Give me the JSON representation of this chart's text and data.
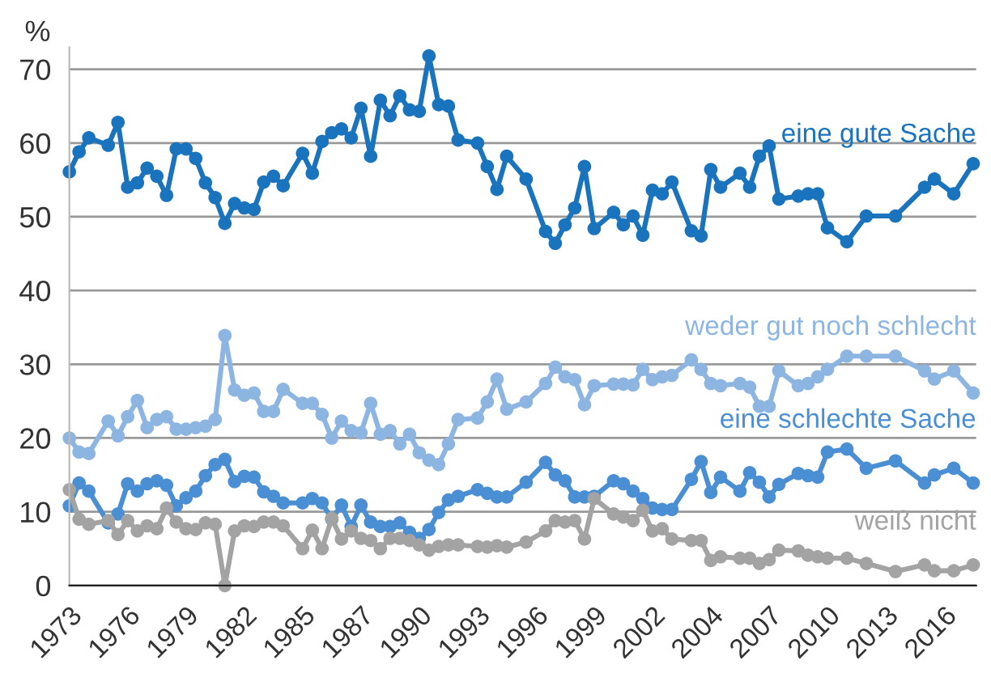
{
  "chart_data": {
    "type": "line",
    "ylabel": "%",
    "categories": [
      "1973",
      null,
      null,
      null,
      null,
      null,
      "1976",
      null,
      null,
      null,
      null,
      null,
      "1979",
      null,
      null,
      null,
      null,
      null,
      "1982",
      null,
      null,
      null,
      null,
      null,
      "1985",
      null,
      null,
      null,
      null,
      null,
      "1987",
      null,
      null,
      null,
      null,
      null,
      "1990",
      null,
      null,
      null,
      null,
      null,
      "1993",
      null,
      null,
      null,
      null,
      null,
      "1996",
      null,
      null,
      null,
      null,
      null,
      "1999",
      null,
      null,
      null,
      null,
      null,
      "2002",
      null,
      null,
      null,
      null,
      null,
      "2004",
      null,
      null,
      null,
      null,
      null,
      "2007",
      null,
      null,
      null,
      null,
      null,
      "2010",
      null,
      null,
      null,
      null,
      null,
      "2013",
      null,
      null,
      null,
      null,
      null,
      "2016",
      null,
      null,
      null
    ],
    "series": [
      {
        "name": "eine gute Sache",
        "color": "#1a74bd",
        "values": [
          56.1,
          58.8,
          60.7,
          null,
          59.7,
          62.8,
          54.0,
          54.6,
          56.6,
          55.5,
          52.9,
          59.2,
          59.2,
          57.9,
          54.6,
          52.6,
          49.1,
          51.8,
          51.2,
          51.0,
          54.7,
          55.5,
          54.2,
          null,
          58.6,
          55.9,
          60.2,
          61.4,
          61.9,
          60.7,
          64.7,
          58.2,
          65.8,
          63.7,
          66.4,
          64.5,
          64.3,
          71.8,
          65.2,
          65.0,
          60.4,
          null,
          60.0,
          56.8,
          53.7,
          58.2,
          null,
          55.1,
          null,
          48.0,
          46.4,
          48.9,
          51.2,
          56.8,
          48.4,
          null,
          50.6,
          48.9,
          50.1,
          47.5,
          53.6,
          53.1,
          54.7,
          null,
          48.1,
          47.4,
          56.4,
          54.0,
          null,
          55.9,
          54.0,
          58.2,
          59.6,
          52.4,
          null,
          52.8,
          53.1,
          53.1,
          48.5,
          null,
          46.6,
          null,
          50.1,
          null,
          null,
          50.1,
          null,
          null,
          54.0,
          55.1,
          null,
          53.1,
          null,
          57.2
        ]
      },
      {
        "name": "weder gut noch schlecht",
        "color": "#8db5e2",
        "values": [
          20.0,
          18.1,
          17.9,
          null,
          22.3,
          20.3,
          22.9,
          25.1,
          21.4,
          22.5,
          22.9,
          21.2,
          21.2,
          21.4,
          21.6,
          22.5,
          33.9,
          26.5,
          25.8,
          26.1,
          23.6,
          23.6,
          26.6,
          null,
          24.7,
          24.7,
          23.2,
          20.0,
          22.3,
          21.0,
          20.7,
          24.7,
          20.5,
          21.0,
          19.2,
          20.5,
          18.0,
          17.0,
          16.4,
          19.2,
          22.5,
          null,
          22.7,
          24.9,
          28.0,
          23.9,
          null,
          24.9,
          null,
          27.4,
          29.6,
          28.3,
          27.9,
          24.5,
          27.1,
          null,
          27.3,
          27.3,
          27.2,
          29.3,
          27.9,
          28.3,
          28.5,
          null,
          30.6,
          29.3,
          27.4,
          27.1,
          null,
          27.4,
          26.9,
          24.3,
          24.3,
          29.1,
          null,
          27.1,
          27.4,
          28.3,
          29.3,
          null,
          31.1,
          null,
          31.1,
          null,
          null,
          31.1,
          null,
          null,
          29.1,
          28.0,
          null,
          29.1,
          null,
          26.1
        ]
      },
      {
        "name": "eine schlechte Sache",
        "color": "#4a8ed4",
        "values": [
          10.8,
          13.9,
          12.8,
          null,
          8.5,
          9.7,
          13.8,
          12.8,
          13.8,
          14.2,
          13.6,
          10.8,
          11.9,
          12.8,
          14.9,
          16.4,
          17.1,
          14.1,
          14.8,
          14.7,
          12.7,
          12.1,
          11.2,
          null,
          11.2,
          11.8,
          11.2,
          9.0,
          10.9,
          8.0,
          10.9,
          8.6,
          8.0,
          8.0,
          8.5,
          7.2,
          6.4,
          7.6,
          9.9,
          11.6,
          12.1,
          null,
          13.0,
          12.5,
          12.0,
          12.0,
          null,
          14.0,
          null,
          16.7,
          15.0,
          14.2,
          12.0,
          12.0,
          12.1,
          null,
          14.2,
          13.8,
          12.8,
          11.8,
          10.5,
          10.3,
          10.3,
          null,
          14.4,
          16.8,
          12.6,
          14.7,
          null,
          12.8,
          15.3,
          14.0,
          12.0,
          13.7,
          null,
          15.2,
          14.9,
          14.7,
          18.1,
          null,
          18.5,
          null,
          15.9,
          null,
          null,
          16.9,
          null,
          null,
          13.9,
          15.0,
          null,
          15.9,
          null,
          13.9
        ]
      },
      {
        "name": "weiß nicht",
        "color": "#a3a3a3",
        "values": [
          13.0,
          9.0,
          8.3,
          null,
          8.8,
          6.9,
          8.8,
          7.4,
          8.1,
          7.7,
          10.5,
          8.6,
          7.7,
          7.6,
          8.5,
          8.3,
          0,
          7.4,
          8.1,
          8.0,
          8.6,
          8.6,
          8.1,
          null,
          5.0,
          7.5,
          5.0,
          9.1,
          6.3,
          7.4,
          6.4,
          6.1,
          5.0,
          6.4,
          6.4,
          6.1,
          5.5,
          4.8,
          5.3,
          5.5,
          5.5,
          null,
          5.3,
          5.2,
          5.4,
          5.2,
          null,
          5.9,
          null,
          7.4,
          8.8,
          8.6,
          8.8,
          6.3,
          11.8,
          null,
          9.7,
          9.3,
          8.8,
          10.2,
          7.4,
          7.7,
          6.3,
          null,
          6.1,
          6.1,
          3.4,
          3.9,
          null,
          3.7,
          3.7,
          3.0,
          3.5,
          4.8,
          null,
          4.7,
          4.1,
          3.9,
          3.7,
          null,
          3.7,
          null,
          3.0,
          null,
          null,
          1.9,
          null,
          null,
          2.8,
          2.0,
          null,
          2.0,
          null,
          2.8
        ]
      }
    ],
    "ylim": [
      0,
      73
    ],
    "yticks": [
      0,
      10,
      20,
      30,
      40,
      50,
      60,
      70
    ],
    "grid": "y",
    "marker": "circle",
    "line_style": "solid",
    "legend": false
  }
}
